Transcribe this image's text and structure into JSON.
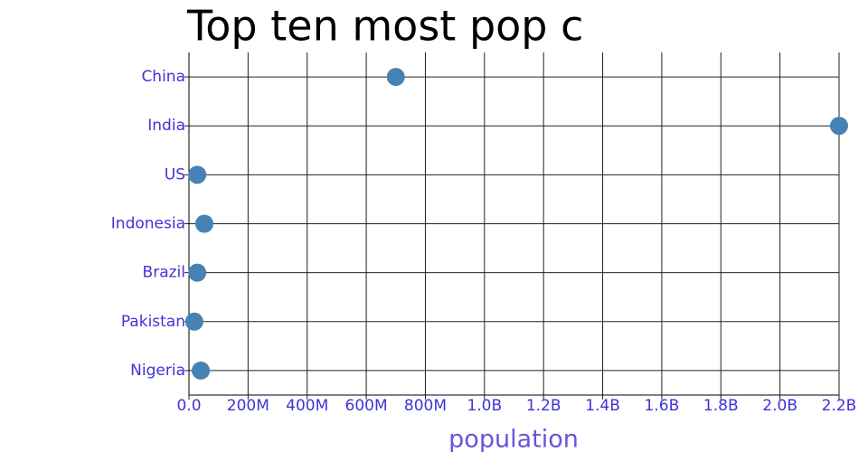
{
  "chart_data": {
    "type": "dot",
    "title": "Top ten most pop c",
    "xlabel": "population",
    "categories": [
      "China",
      "India",
      "US",
      "Indonesia",
      "Brazil",
      "Pakistan",
      "Nigeria"
    ],
    "values": [
      700000000,
      2200000000,
      28000000,
      52000000,
      28000000,
      18000000,
      40000000
    ],
    "color": "#4682b4",
    "xlim": [
      0,
      2200000000
    ],
    "xticks": [
      {
        "value": 0,
        "label": "0.0"
      },
      {
        "value": 200000000,
        "label": "200M"
      },
      {
        "value": 400000000,
        "label": "400M"
      },
      {
        "value": 600000000,
        "label": "600M"
      },
      {
        "value": 800000000,
        "label": "800M"
      },
      {
        "value": 1000000000,
        "label": "1.0B"
      },
      {
        "value": 1200000000,
        "label": "1.2B"
      },
      {
        "value": 1400000000,
        "label": "1.4B"
      },
      {
        "value": 1600000000,
        "label": "1.6B"
      },
      {
        "value": 1800000000,
        "label": "1.8B"
      },
      {
        "value": 2000000000,
        "label": "2.0B"
      },
      {
        "value": 2200000000,
        "label": "2.2B"
      }
    ],
    "grid": true
  }
}
